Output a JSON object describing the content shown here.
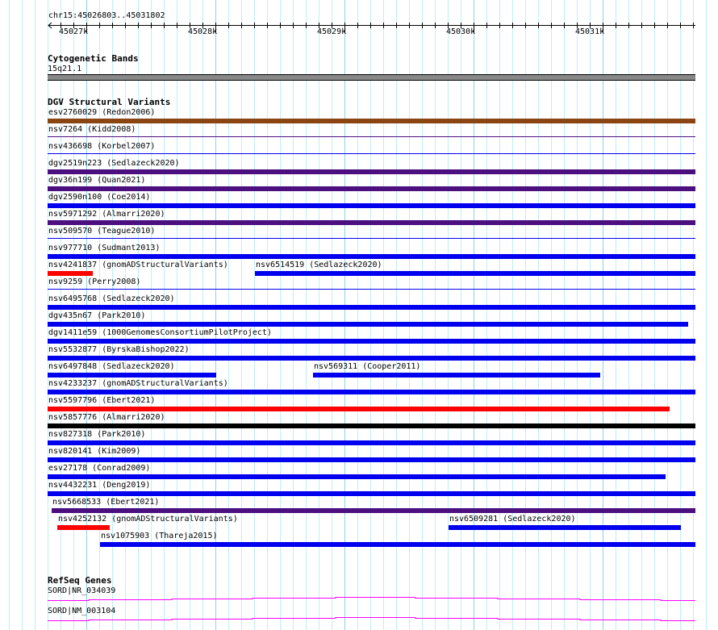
{
  "location": "chr15:45026803..45031802",
  "ruler": {
    "ticks": [
      "45027k",
      "45028k",
      "45029k",
      "45030k",
      "45031k"
    ]
  },
  "colors": {
    "brown": "#8b4513",
    "purple": "#4b0f80",
    "blue": "#0000ee",
    "red": "#ff0000",
    "black": "#000000",
    "gene": "#ff00ff"
  },
  "cytobands": {
    "title": "Cytogenetic Bands",
    "band": "15q21.1"
  },
  "dgv": {
    "title": "DGV Structural Variants",
    "rows": [
      [
        {
          "label": "esv2760029 (Redon2006)",
          "color": "brown",
          "start": 0,
          "end": 1
        }
      ],
      [
        {
          "label": "nsv7264 (Kidd2008)",
          "color": "purple",
          "start": 0,
          "end": 1,
          "thin": true
        }
      ],
      [
        {
          "label": "nsv436698 (Korbel2007)",
          "color": "blue",
          "start": 0,
          "end": 1,
          "thin": true
        }
      ],
      [
        {
          "label": "dgv2519n223 (Sedlazeck2020)",
          "color": "purple",
          "start": 0,
          "end": 1
        }
      ],
      [
        {
          "label": "dgv36n199 (Quan2021)",
          "color": "purple",
          "start": 0,
          "end": 1
        }
      ],
      [
        {
          "label": "dgv2590n100 (Coe2014)",
          "color": "blue",
          "start": 0,
          "end": 1
        }
      ],
      [
        {
          "label": "nsv5971292 (Almarri2020)",
          "color": "purple",
          "start": 0,
          "end": 1
        }
      ],
      [
        {
          "label": "nsv509570 (Teague2010)",
          "color": "blue",
          "start": 0,
          "end": 1,
          "thin": true
        }
      ],
      [
        {
          "label": "nsv977710 (Sudmant2013)",
          "color": "blue",
          "start": 0,
          "end": 1
        }
      ],
      [
        {
          "label": "nsv4241837 (gnomADStructuralVariants)",
          "color": "red",
          "start": 0,
          "end": 0.07
        },
        {
          "label": "nsv6514519 (Sedlazeck2020)",
          "color": "blue",
          "start": 0.32,
          "end": 1
        }
      ],
      [
        {
          "label": "nsv9259 (Perry2008)",
          "color": "blue",
          "start": 0,
          "end": 1,
          "thin": true
        }
      ],
      [
        {
          "label": "nsv6495768 (Sedlazeck2020)",
          "color": "blue",
          "start": 0,
          "end": 1
        }
      ],
      [
        {
          "label": "dgv435n67 (Park2010)",
          "color": "blue",
          "start": 0,
          "end": 0.989
        }
      ],
      [
        {
          "label": "dgv1411e59 (1000GenomesConsortiumPilotProject)",
          "color": "blue",
          "start": 0,
          "end": 1
        }
      ],
      [
        {
          "label": "nsv5532877 (ByrskaBishop2022)",
          "color": "blue",
          "start": 0,
          "end": 1
        }
      ],
      [
        {
          "label": "nsv6497848 (Sedlazeck2020)",
          "color": "blue",
          "start": 0,
          "end": 0.26
        },
        {
          "label": "nsv569311 (Cooper2011)",
          "color": "blue",
          "start": 0.41,
          "end": 0.853
        }
      ],
      [
        {
          "label": "nsv4233237 (gnomADStructuralVariants)",
          "color": "blue",
          "start": 0,
          "end": 1
        }
      ],
      [
        {
          "label": "nsv5597796 (Ebert2021)",
          "color": "red",
          "start": 0,
          "end": 0.96
        }
      ],
      [
        {
          "label": "nsv5857776 (Almarri2020)",
          "color": "black",
          "start": 0,
          "end": 1
        }
      ],
      [
        {
          "label": "nsv827318 (Park2010)",
          "color": "blue",
          "start": 0,
          "end": 1
        }
      ],
      [
        {
          "label": "nsv820141 (Kim2009)",
          "color": "blue",
          "start": 0,
          "end": 1
        }
      ],
      [
        {
          "label": "esv27178 (Conrad2009)",
          "color": "blue",
          "start": 0,
          "end": 0.954
        }
      ],
      [
        {
          "label": "nsv4432231 (Deng2019)",
          "color": "blue",
          "start": 0,
          "end": 1
        }
      ],
      [
        {
          "label": "nsv5668533 (Ebert2021)",
          "color": "purple",
          "start": 0.006,
          "end": 1
        }
      ],
      [
        {
          "label": "nsv4252132 (gnomADStructuralVariants)",
          "color": "red",
          "start": 0.015,
          "end": 0.096
        },
        {
          "label": "nsv6509281 (Sedlazeck2020)",
          "color": "blue",
          "start": 0.619,
          "end": 0.978
        }
      ],
      [
        {
          "label": "nsv1075903 (Thareja2015)",
          "color": "blue",
          "start": 0.081,
          "end": 1
        }
      ]
    ]
  },
  "refseq": {
    "title": "RefSeq Genes",
    "genes": [
      "SORD|NR_034039",
      "SORD|NM_003104"
    ]
  }
}
